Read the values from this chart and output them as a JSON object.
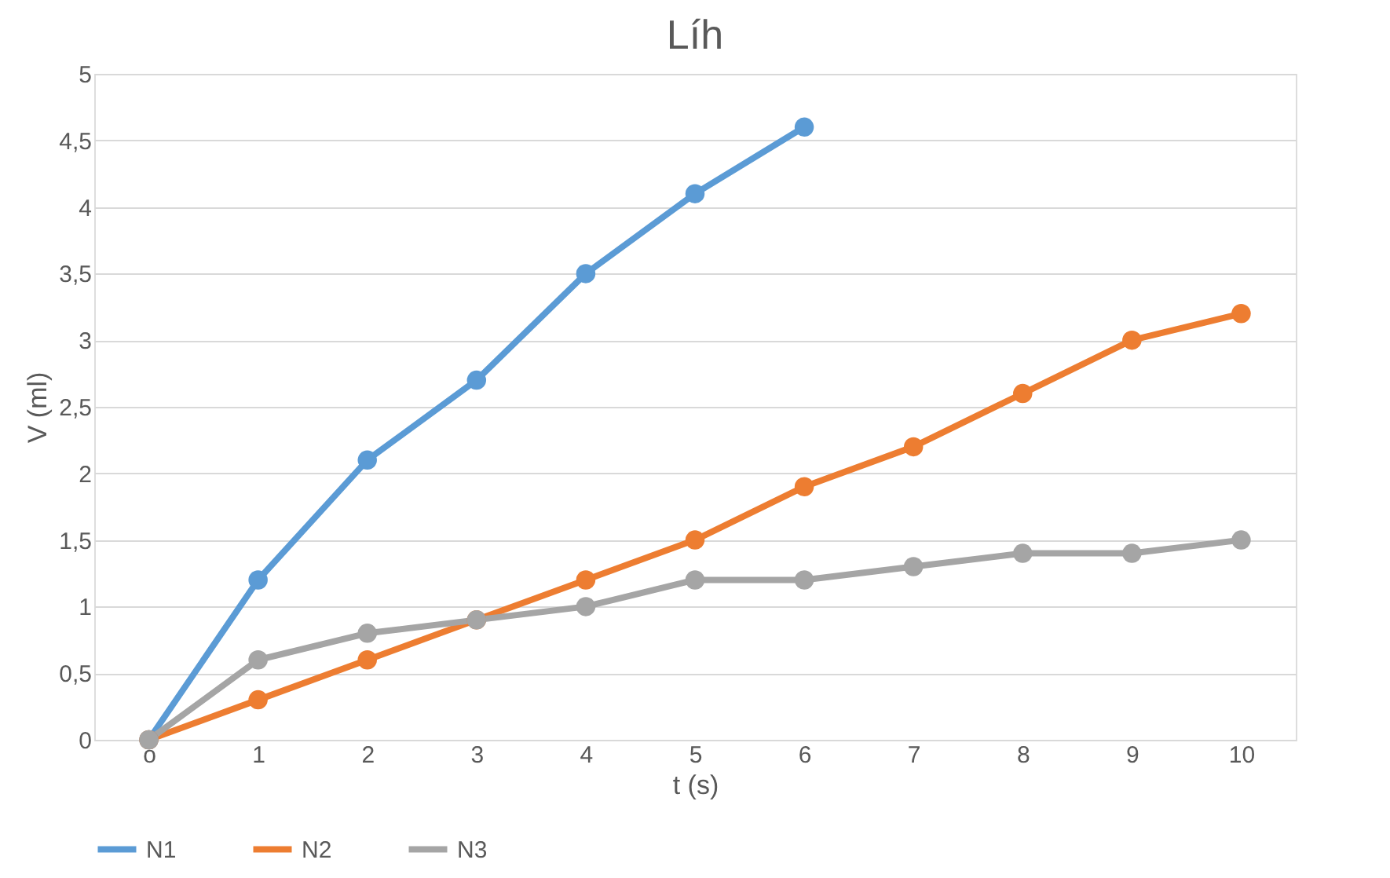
{
  "chart_data": {
    "type": "line",
    "title": "Líh",
    "xlabel": "t (s)",
    "ylabel": "V (ml)",
    "categories": [
      "o",
      "1",
      "2",
      "3",
      "4",
      "5",
      "6",
      "7",
      "8",
      "9",
      "10"
    ],
    "series": [
      {
        "name": "N1",
        "color": "#5b9bd5",
        "values": [
          0,
          1.2,
          2.1,
          2.7,
          3.5,
          4.1,
          4.6,
          null,
          null,
          null,
          null
        ]
      },
      {
        "name": "N2",
        "color": "#ed7d31",
        "values": [
          0,
          0.3,
          0.6,
          0.9,
          1.2,
          1.5,
          1.9,
          2.2,
          2.6,
          3.0,
          3.2
        ]
      },
      {
        "name": "N3",
        "color": "#a5a5a5",
        "values": [
          0,
          0.6,
          0.8,
          0.9,
          1.0,
          1.2,
          1.2,
          1.3,
          1.4,
          1.4,
          1.5
        ]
      }
    ],
    "ylim": [
      0,
      5
    ],
    "yticks": [
      0,
      {
        "value": 0.5,
        "label": "0,5"
      },
      1,
      {
        "value": 1.5,
        "label": "1,5"
      },
      2,
      {
        "value": 2.5,
        "label": "2,5"
      },
      3,
      {
        "value": 3.5,
        "label": "3,5"
      },
      4,
      {
        "value": 4.5,
        "label": "4,5"
      },
      5
    ],
    "grid": "y",
    "legend": "bottom",
    "marker": "circle",
    "line_style": "solid"
  }
}
